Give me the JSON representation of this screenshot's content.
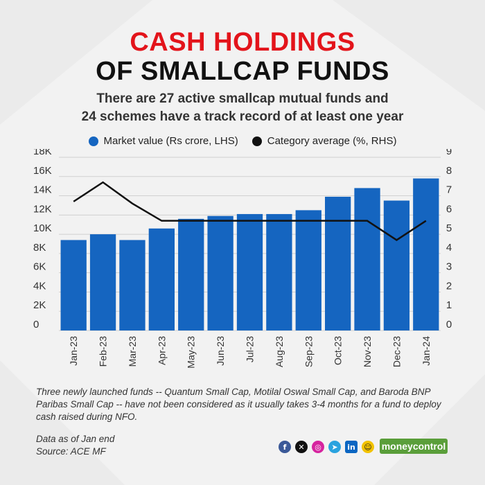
{
  "title_line1": "CASH HOLDINGS",
  "title_line2": "OF SMALLCAP FUNDS",
  "subtitle_line1": "There are 27 active smallcap mutual funds and",
  "subtitle_line2": "24 schemes have a track record of at least one year",
  "note": "Three newly launched funds -- Quantum Small Cap, Motilal Oswal Small Cap, and Baroda BNP Paribas Small Cap -- have not been considered as it usually takes 3-4 months for a fund to deploy cash raised during NFO.",
  "data_as_of": "Data as of Jan end",
  "source": "Source: ACE MF",
  "brand": "moneycontrol",
  "social_icons": [
    "facebook-icon",
    "x-icon",
    "instagram-icon",
    "telegram-icon",
    "linkedin-icon",
    "snapchat-icon"
  ],
  "colors": {
    "bar": "#1565c0",
    "line": "#111111",
    "title_red": "#e3141b"
  },
  "chart_data": {
    "type": "bar",
    "categories": [
      "Jan-23",
      "Feb-23",
      "Mar-23",
      "Apr-23",
      "May-23",
      "Jun-23",
      "Jul-23",
      "Aug-23",
      "Sep-23",
      "Oct-23",
      "Nov-23",
      "Dec-23",
      "Jan-24"
    ],
    "series": [
      {
        "name": "Market value (Rs crore, LHS)",
        "type": "bar",
        "axis": "left",
        "values": [
          9400,
          10000,
          9400,
          10600,
          11600,
          11900,
          12100,
          12100,
          12500,
          13900,
          14800,
          13500,
          15800
        ]
      },
      {
        "name": "Category average (%, RHS)",
        "type": "line",
        "axis": "right",
        "values": [
          6.7,
          7.7,
          6.6,
          5.7,
          5.7,
          5.7,
          5.7,
          5.7,
          5.7,
          5.7,
          5.7,
          4.7,
          5.7
        ]
      }
    ],
    "y_left": {
      "ticks": [
        "0",
        "2K",
        "4K",
        "6K",
        "8K",
        "10K",
        "12K",
        "14K",
        "16K",
        "18K"
      ],
      "range": [
        0,
        18000
      ]
    },
    "y_right": {
      "ticks": [
        "0",
        "1",
        "2",
        "3",
        "4",
        "5",
        "6",
        "7",
        "8",
        "9"
      ],
      "range": [
        0,
        9
      ]
    },
    "grid": true,
    "legend_position": "top"
  }
}
